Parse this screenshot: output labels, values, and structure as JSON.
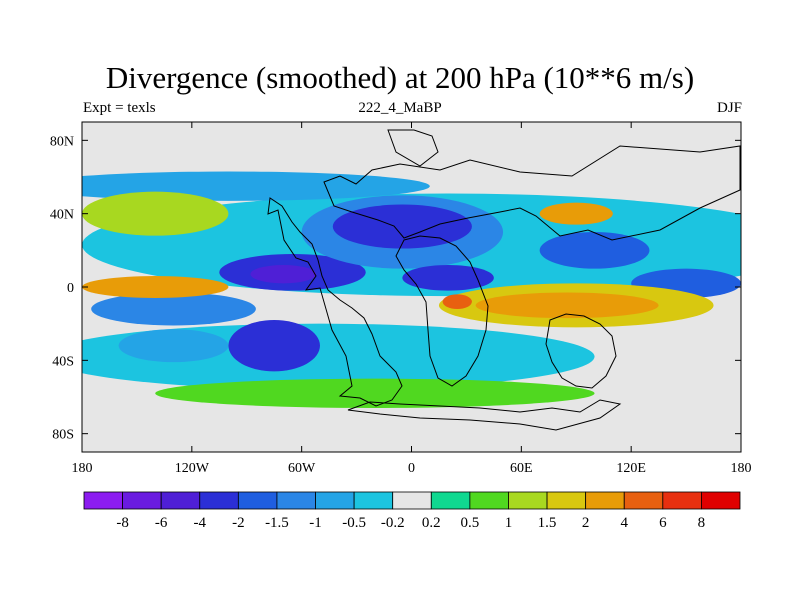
{
  "chart_data": {
    "type": "heatmap",
    "title": "Divergence (smoothed) at 200 hPa (10**6 m/s)",
    "subtitle_left": "Expt = texls",
    "subtitle_center": "222_4_MaBP",
    "subtitle_right": "DJF",
    "xlim": [
      -180,
      180
    ],
    "ylim": [
      -90,
      90
    ],
    "x_ticks": [
      {
        "value": -180,
        "label": "180"
      },
      {
        "value": -120,
        "label": "120W"
      },
      {
        "value": -60,
        "label": "60W"
      },
      {
        "value": 0,
        "label": "0"
      },
      {
        "value": 60,
        "label": "60E"
      },
      {
        "value": 120,
        "label": "120E"
      },
      {
        "value": 180,
        "label": "180"
      }
    ],
    "y_ticks": [
      {
        "value": 80,
        "label": "80N"
      },
      {
        "value": 40,
        "label": "40N"
      },
      {
        "value": 0,
        "label": "0"
      },
      {
        "value": -40,
        "label": "40S"
      },
      {
        "value": -80,
        "label": "80S"
      }
    ],
    "colorbar": {
      "levels": [
        "-8",
        "-6",
        "-4",
        "-2",
        "-1.5",
        "-1",
        "-0.5",
        "-0.2",
        "0.2",
        "0.5",
        "1",
        "1.5",
        "2",
        "4",
        "6",
        "8"
      ],
      "colors": [
        "#8c1cf0",
        "#6a1be0",
        "#4f1fd6",
        "#2b2fd6",
        "#1f5ee0",
        "#2b86e6",
        "#24a4e6",
        "#1cc4e0",
        "#e6e6e6",
        "#10d890",
        "#50d820",
        "#a8d820",
        "#d8c810",
        "#e89c08",
        "#e86010",
        "#e83010",
        "#e00000"
      ]
    },
    "fields": [
      {
        "name": "trop-band-n",
        "lon": 20,
        "lat": 23,
        "rx": 200,
        "ry": 28,
        "value": -0.4
      },
      {
        "name": "mid-s",
        "lon": -50,
        "lat": -38,
        "rx": 150,
        "ry": 18,
        "value": -0.4
      },
      {
        "name": "wpac-s",
        "lon": -130,
        "lat": -12,
        "rx": 45,
        "ry": 9,
        "value": -1.2
      },
      {
        "name": "epac-n",
        "lon": -65,
        "lat": 8,
        "rx": 40,
        "ry": 10,
        "value": -2.5
      },
      {
        "name": "epac-core",
        "lon": -70,
        "lat": 7,
        "rx": 18,
        "ry": 5,
        "value": -6
      },
      {
        "name": "atl-n",
        "lon": -5,
        "lat": 30,
        "rx": 55,
        "ry": 20,
        "value": -1.5
      },
      {
        "name": "atl-core",
        "lon": -5,
        "lat": 33,
        "rx": 38,
        "ry": 12,
        "value": -3
      },
      {
        "name": "afr-n",
        "lon": 20,
        "lat": 5,
        "rx": 25,
        "ry": 7,
        "value": -2.2
      },
      {
        "name": "ind-n",
        "lon": 100,
        "lat": 20,
        "rx": 30,
        "ry": 10,
        "value": -1.8
      },
      {
        "name": "wpac-n",
        "lon": 150,
        "lat": 2,
        "rx": 30,
        "ry": 8,
        "value": -1.8
      },
      {
        "name": "sa-s",
        "lon": -75,
        "lat": -32,
        "rx": 25,
        "ry": 14,
        "value": -3
      },
      {
        "name": "spac",
        "lon": -130,
        "lat": -32,
        "rx": 30,
        "ry": 9,
        "value": -0.8
      },
      {
        "name": "southern",
        "lon": 30,
        "lat": -58,
        "rx": 45,
        "ry": 7,
        "value": -0.8
      },
      {
        "name": "mid-n",
        "lon": -100,
        "lat": 55,
        "rx": 110,
        "ry": 8,
        "value": -0.6
      },
      {
        "name": "trop-pos-s",
        "lon": 90,
        "lat": -10,
        "rx": 75,
        "ry": 12,
        "value": 1.8
      },
      {
        "name": "trop-pos-core",
        "lon": 85,
        "lat": -10,
        "rx": 50,
        "ry": 7,
        "value": 3
      },
      {
        "name": "afr-pos",
        "lon": 25,
        "lat": -8,
        "rx": 8,
        "ry": 4,
        "value": 4.5
      },
      {
        "name": "pac-eq",
        "lon": -140,
        "lat": 0,
        "rx": 40,
        "ry": 6,
        "value": 2
      },
      {
        "name": "mid-n-pos",
        "lon": -140,
        "lat": 40,
        "rx": 40,
        "ry": 12,
        "value": 1
      },
      {
        "name": "asia-n-pos",
        "lon": 90,
        "lat": 40,
        "rx": 20,
        "ry": 6,
        "value": 2
      },
      {
        "name": "mid-s-pos",
        "lon": -20,
        "lat": -58,
        "rx": 120,
        "ry": 8,
        "value": 0.5
      }
    ]
  }
}
